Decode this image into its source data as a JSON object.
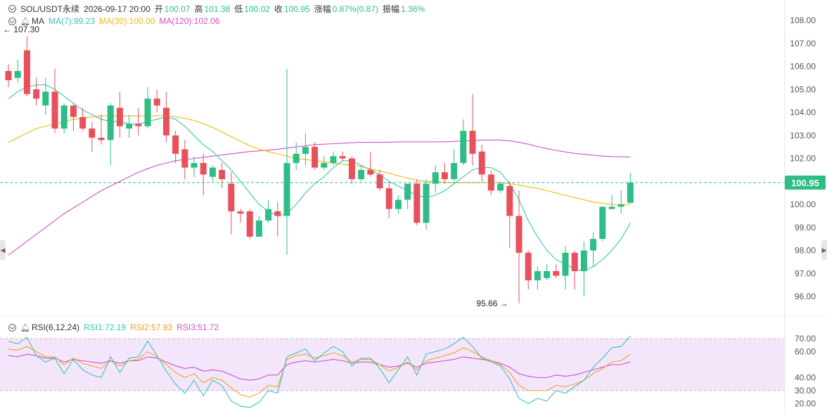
{
  "header": {
    "symbol": "SOL/USDT永续",
    "datetime": "2026-09-17 20:00",
    "open_label": "开",
    "open": "100.07",
    "high_label": "高",
    "high": "101.38",
    "low_label": "低",
    "low": "100.02",
    "close_label": "收",
    "close": "100.95",
    "change_label": "涨幅",
    "change": "0.87%(0.87)",
    "amplitude_label": "振幅",
    "amplitude": "1.36%"
  },
  "ma_legend": {
    "label": "MA",
    "ma7": "MA(7):99.23",
    "ma30": "MA(30):100.00",
    "ma120": "MA(120):102.06"
  },
  "rsi_legend": {
    "label": "RSI(6,12,24)",
    "rsi1": "RSI1:72.19",
    "rsi2": "RSI2:57.93",
    "rsi3": "RSI3:51.72"
  },
  "colors": {
    "up": "#2ebd85",
    "down": "#e8505b",
    "ma7": "#3cc3b4",
    "ma30": "#f0b90b",
    "ma120": "#d050c8",
    "rsi1": "#3cc3b4",
    "rsi2": "#f0a030",
    "rsi3": "#d050c8",
    "last_price_bg": "#2ebd85",
    "rsi_band": "#f3e6fb"
  },
  "chart_data": [
    {
      "type": "candlestick",
      "name": "price",
      "y_ticks": [
        "108.00",
        "107.00",
        "106.00",
        "105.00",
        "104.00",
        "103.00",
        "102.00",
        "100.00",
        "99.00",
        "98.00",
        "97.00",
        "96.00"
      ],
      "ylim": [
        95.6,
        108.1
      ],
      "last_price": 100.95,
      "last_price_label": "100.95",
      "max_marker": {
        "index": 2,
        "value": 107.3,
        "label": "← 107.30"
      },
      "min_marker": {
        "index": 54,
        "value": 95.66,
        "label": "95.66 →"
      },
      "candles": [
        {
          "o": 105.8,
          "c": 105.4,
          "h": 106.1,
          "l": 105.1
        },
        {
          "o": 105.5,
          "c": 105.8,
          "h": 106.3,
          "l": 105.3
        },
        {
          "o": 106.7,
          "c": 104.8,
          "h": 107.3,
          "l": 104.7
        },
        {
          "o": 105.0,
          "c": 104.6,
          "h": 105.5,
          "l": 104.3
        },
        {
          "o": 104.3,
          "c": 104.9,
          "h": 105.5,
          "l": 103.9
        },
        {
          "o": 104.9,
          "c": 103.3,
          "h": 105.9,
          "l": 103.1
        },
        {
          "o": 103.3,
          "c": 104.3,
          "h": 104.4,
          "l": 103.1
        },
        {
          "o": 104.3,
          "c": 103.8,
          "h": 104.4,
          "l": 103.2
        },
        {
          "o": 103.8,
          "c": 103.3,
          "h": 104.2,
          "l": 103.2
        },
        {
          "o": 103.3,
          "c": 102.9,
          "h": 103.6,
          "l": 102.3
        },
        {
          "o": 102.9,
          "c": 102.8,
          "h": 103.9,
          "l": 102.6
        },
        {
          "o": 102.8,
          "c": 104.3,
          "h": 104.4,
          "l": 101.7
        },
        {
          "o": 104.2,
          "c": 103.4,
          "h": 104.9,
          "l": 102.9
        },
        {
          "o": 103.3,
          "c": 103.5,
          "h": 103.9,
          "l": 102.9
        },
        {
          "o": 103.5,
          "c": 103.4,
          "h": 104.2,
          "l": 103.0
        },
        {
          "o": 103.4,
          "c": 104.6,
          "h": 105.1,
          "l": 103.3
        },
        {
          "o": 104.6,
          "c": 104.3,
          "h": 105.0,
          "l": 104.0
        },
        {
          "o": 104.2,
          "c": 103.0,
          "h": 104.9,
          "l": 102.7
        },
        {
          "o": 103.0,
          "c": 102.2,
          "h": 103.2,
          "l": 101.8
        },
        {
          "o": 102.4,
          "c": 101.6,
          "h": 102.8,
          "l": 101.1
        },
        {
          "o": 101.6,
          "c": 101.8,
          "h": 102.1,
          "l": 101.2
        },
        {
          "o": 101.8,
          "c": 101.3,
          "h": 102.2,
          "l": 100.4
        },
        {
          "o": 101.2,
          "c": 101.6,
          "h": 101.7,
          "l": 101.0
        },
        {
          "o": 101.5,
          "c": 101.1,
          "h": 101.8,
          "l": 100.7
        },
        {
          "o": 100.9,
          "c": 99.7,
          "h": 101.4,
          "l": 98.7
        },
        {
          "o": 99.7,
          "c": 99.6,
          "h": 99.8,
          "l": 99.2
        },
        {
          "o": 99.7,
          "c": 98.6,
          "h": 99.8,
          "l": 98.5
        },
        {
          "o": 98.6,
          "c": 99.3,
          "h": 99.5,
          "l": 98.6
        },
        {
          "o": 99.3,
          "c": 99.8,
          "h": 100.2,
          "l": 99.2
        },
        {
          "o": 99.7,
          "c": 99.5,
          "h": 100.1,
          "l": 98.6
        },
        {
          "o": 99.5,
          "c": 101.8,
          "h": 105.9,
          "l": 97.8
        },
        {
          "o": 101.8,
          "c": 102.2,
          "h": 102.7,
          "l": 101.5
        },
        {
          "o": 102.2,
          "c": 102.5,
          "h": 103.1,
          "l": 101.7
        },
        {
          "o": 102.5,
          "c": 101.6,
          "h": 102.7,
          "l": 101.5
        },
        {
          "o": 101.6,
          "c": 101.8,
          "h": 102.1,
          "l": 101.5
        },
        {
          "o": 101.8,
          "c": 102.1,
          "h": 102.3,
          "l": 101.7
        },
        {
          "o": 102.1,
          "c": 102.0,
          "h": 102.3,
          "l": 101.9
        },
        {
          "o": 102.0,
          "c": 101.1,
          "h": 102.1,
          "l": 100.9
        },
        {
          "o": 101.1,
          "c": 101.5,
          "h": 101.7,
          "l": 101.0
        },
        {
          "o": 101.5,
          "c": 101.3,
          "h": 102.3,
          "l": 101.2
        },
        {
          "o": 101.3,
          "c": 100.7,
          "h": 101.5,
          "l": 100.6
        },
        {
          "o": 100.7,
          "c": 99.8,
          "h": 101.0,
          "l": 99.4
        },
        {
          "o": 99.8,
          "c": 100.2,
          "h": 100.4,
          "l": 99.6
        },
        {
          "o": 100.2,
          "c": 100.9,
          "h": 100.9,
          "l": 99.8
        },
        {
          "o": 100.9,
          "c": 99.2,
          "h": 101.1,
          "l": 99.1
        },
        {
          "o": 99.2,
          "c": 100.9,
          "h": 101.1,
          "l": 98.9
        },
        {
          "o": 100.9,
          "c": 101.4,
          "h": 101.7,
          "l": 100.5
        },
        {
          "o": 101.4,
          "c": 101.1,
          "h": 101.8,
          "l": 100.9
        },
        {
          "o": 101.1,
          "c": 101.8,
          "h": 102.4,
          "l": 101.0
        },
        {
          "o": 101.8,
          "c": 103.2,
          "h": 103.7,
          "l": 101.7
        },
        {
          "o": 103.2,
          "c": 102.2,
          "h": 104.8,
          "l": 101.7
        },
        {
          "o": 102.3,
          "c": 101.3,
          "h": 102.6,
          "l": 101.0
        },
        {
          "o": 101.3,
          "c": 100.6,
          "h": 101.5,
          "l": 100.4
        },
        {
          "o": 100.6,
          "c": 100.9,
          "h": 101.0,
          "l": 100.5
        },
        {
          "o": 100.8,
          "c": 99.5,
          "h": 101.0,
          "l": 98.1
        },
        {
          "o": 99.5,
          "c": 97.9,
          "h": 100.6,
          "l": 95.7
        },
        {
          "o": 97.9,
          "c": 96.7,
          "h": 98.0,
          "l": 96.3
        },
        {
          "o": 96.7,
          "c": 97.1,
          "h": 97.3,
          "l": 96.3
        },
        {
          "o": 96.8,
          "c": 97.1,
          "h": 97.4,
          "l": 96.7
        },
        {
          "o": 97.1,
          "c": 96.9,
          "h": 97.4,
          "l": 96.8
        },
        {
          "o": 96.9,
          "c": 97.9,
          "h": 98.2,
          "l": 96.3
        },
        {
          "o": 97.9,
          "c": 97.1,
          "h": 98.0,
          "l": 96.3
        },
        {
          "o": 97.1,
          "c": 98.0,
          "h": 98.4,
          "l": 96.0
        },
        {
          "o": 98.0,
          "c": 98.5,
          "h": 98.8,
          "l": 97.3
        },
        {
          "o": 98.5,
          "c": 99.9,
          "h": 99.9,
          "l": 98.4
        },
        {
          "o": 99.8,
          "c": 99.9,
          "h": 100.4,
          "l": 99.8
        },
        {
          "o": 99.9,
          "c": 100.0,
          "h": 100.6,
          "l": 99.6
        },
        {
          "o": 100.07,
          "c": 100.95,
          "h": 101.38,
          "l": 100.02
        }
      ],
      "ma7": [
        104.6,
        104.9,
        105.1,
        105.2,
        105.2,
        105.0,
        104.7,
        104.4,
        104.1,
        103.9,
        103.7,
        103.6,
        103.6,
        103.5,
        103.5,
        103.6,
        103.7,
        103.8,
        103.7,
        103.4,
        103.0,
        102.6,
        102.3,
        101.9,
        101.5,
        101.0,
        100.5,
        100.0,
        99.7,
        99.5,
        99.6,
        100.0,
        100.5,
        100.9,
        101.2,
        101.6,
        101.9,
        101.9,
        101.7,
        101.5,
        101.3,
        101.0,
        100.8,
        100.6,
        100.4,
        100.3,
        100.4,
        100.6,
        100.9,
        101.2,
        101.5,
        101.6,
        101.6,
        101.4,
        100.9,
        100.2,
        99.3,
        98.6,
        98.0,
        97.6,
        97.4,
        97.2,
        97.1,
        97.3,
        97.6,
        98.0,
        98.5,
        99.2
      ],
      "ma30": [
        102.7,
        102.9,
        103.1,
        103.3,
        103.4,
        103.5,
        103.6,
        103.7,
        103.75,
        103.8,
        103.85,
        103.85,
        103.85,
        103.85,
        103.85,
        103.85,
        103.85,
        103.85,
        103.8,
        103.75,
        103.65,
        103.5,
        103.35,
        103.15,
        102.95,
        102.75,
        102.55,
        102.4,
        102.3,
        102.2,
        102.1,
        102.0,
        101.95,
        101.9,
        101.85,
        101.8,
        101.75,
        101.7,
        101.65,
        101.55,
        101.45,
        101.35,
        101.25,
        101.15,
        101.05,
        101.0,
        101.0,
        100.95,
        100.95,
        100.95,
        100.95,
        100.95,
        100.95,
        100.95,
        100.9,
        100.85,
        100.75,
        100.7,
        100.6,
        100.5,
        100.4,
        100.3,
        100.2,
        100.1,
        100.05,
        100.0,
        100.0,
        100.0
      ],
      "ma120": [
        97.8,
        98.1,
        98.4,
        98.7,
        99.0,
        99.3,
        99.6,
        99.85,
        100.1,
        100.35,
        100.6,
        100.8,
        101.0,
        101.2,
        101.4,
        101.55,
        101.7,
        101.8,
        101.9,
        101.95,
        102.0,
        102.05,
        102.1,
        102.15,
        102.2,
        102.25,
        102.3,
        102.33,
        102.36,
        102.4,
        102.45,
        102.5,
        102.55,
        102.6,
        102.62,
        102.64,
        102.66,
        102.68,
        102.7,
        102.7,
        102.7,
        102.7,
        102.72,
        102.72,
        102.72,
        102.72,
        102.72,
        102.72,
        102.74,
        102.76,
        102.78,
        102.8,
        102.8,
        102.8,
        102.76,
        102.7,
        102.62,
        102.52,
        102.42,
        102.35,
        102.28,
        102.22,
        102.18,
        102.14,
        102.1,
        102.08,
        102.07,
        102.06
      ]
    },
    {
      "type": "line",
      "name": "RSI",
      "y_ticks": [
        "70.00",
        "60.00",
        "40.00",
        "30.00",
        "20.00"
      ],
      "ylim": [
        17,
        73
      ],
      "band": [
        30,
        70
      ],
      "series": [
        {
          "name": "RSI1",
          "values": [
            68,
            66,
            71,
            57,
            52,
            55,
            43,
            54,
            46,
            42,
            40,
            56,
            44,
            55,
            56,
            68,
            57,
            45,
            35,
            28,
            38,
            26,
            38,
            34,
            22,
            18,
            17,
            21,
            30,
            28,
            56,
            59,
            62,
            53,
            59,
            64,
            60,
            49,
            55,
            55,
            47,
            36,
            46,
            56,
            42,
            58,
            60,
            62,
            66,
            71,
            64,
            55,
            52,
            49,
            39,
            24,
            20,
            24,
            22,
            30,
            28,
            33,
            38,
            48,
            55,
            63,
            64,
            72
          ]
        },
        {
          "name": "RSI2",
          "values": [
            62,
            61,
            64,
            60,
            56,
            56,
            50,
            55,
            51,
            49,
            47,
            53,
            49,
            53,
            54,
            60,
            56,
            50,
            44,
            40,
            43,
            36,
            40,
            38,
            32,
            27,
            25,
            28,
            34,
            33,
            54,
            57,
            58,
            55,
            57,
            59,
            57,
            52,
            54,
            54,
            50,
            45,
            48,
            52,
            46,
            53,
            55,
            57,
            59,
            63,
            60,
            56,
            53,
            50,
            44,
            34,
            30,
            30,
            30,
            34,
            33,
            35,
            38,
            43,
            47,
            52,
            53,
            58
          ]
        },
        {
          "name": "RSI3",
          "values": [
            57,
            56,
            58,
            57,
            55,
            55,
            52,
            54,
            53,
            52,
            51,
            53,
            51,
            53,
            53,
            56,
            55,
            52,
            49,
            47,
            48,
            45,
            46,
            45,
            42,
            39,
            38,
            39,
            42,
            42,
            50,
            52,
            53,
            52,
            53,
            54,
            53,
            51,
            52,
            52,
            50,
            48,
            49,
            51,
            48,
            51,
            52,
            53,
            54,
            56,
            55,
            54,
            53,
            51,
            48,
            43,
            41,
            40,
            40,
            42,
            41,
            42,
            44,
            46,
            48,
            50,
            50,
            52
          ]
        }
      ]
    }
  ]
}
